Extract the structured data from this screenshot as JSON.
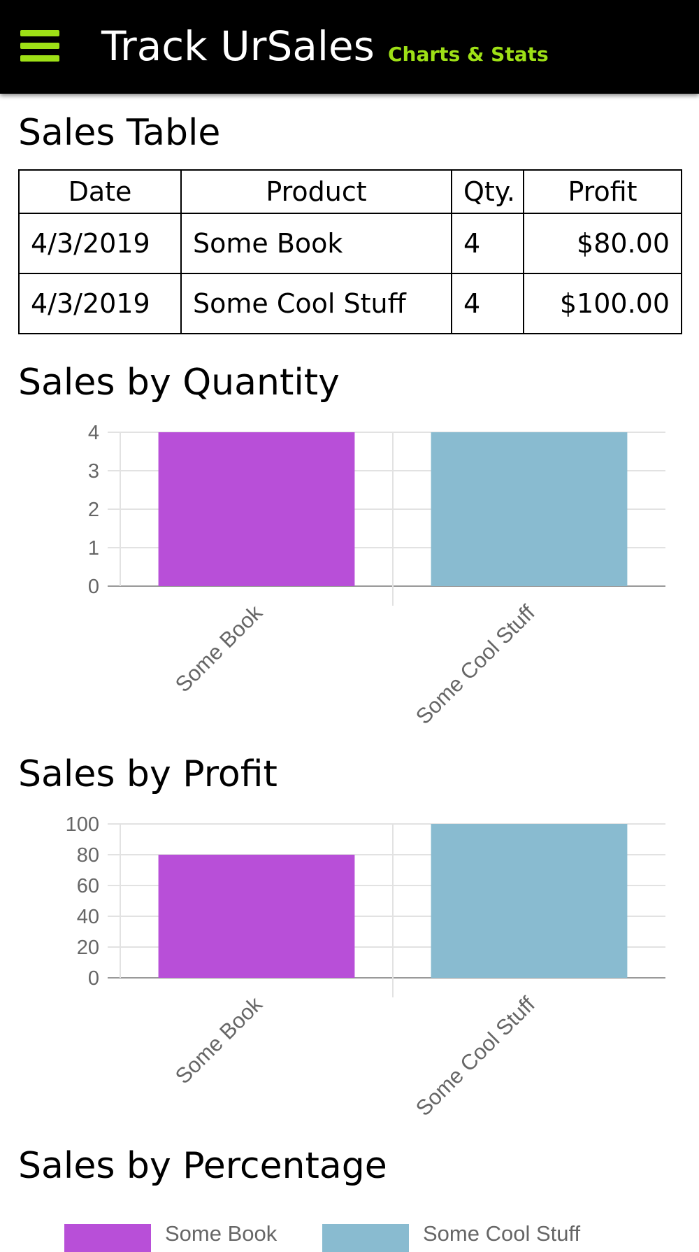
{
  "header": {
    "title": "Track UrSales",
    "subtitle": "Charts & Stats",
    "menu_icon": "hamburger-icon",
    "accent_color": "#9ee016"
  },
  "sales_table": {
    "title": "Sales Table",
    "columns": [
      "Date",
      "Product",
      "Qty.",
      "Profit"
    ],
    "rows": [
      [
        "4/3/2019",
        "Some Book",
        "4",
        "$80.00"
      ],
      [
        "4/3/2019",
        "Some Cool Stuff",
        "4",
        "$100.00"
      ]
    ]
  },
  "sections": {
    "quantity_title": "Sales by Quantity",
    "profit_title": "Sales by Profit",
    "percentage_title": "Sales by Percentage"
  },
  "chart_data": [
    {
      "type": "bar",
      "categories": [
        "Some Book",
        "Some Cool Stuff"
      ],
      "values": [
        4,
        4
      ],
      "colors": [
        "#b84fd8",
        "#89bbd0"
      ],
      "ylim": [
        0,
        4
      ],
      "yticks": [
        0,
        1,
        2,
        3,
        4
      ],
      "grid": true
    },
    {
      "type": "bar",
      "categories": [
        "Some Book",
        "Some Cool Stuff"
      ],
      "values": [
        80,
        100
      ],
      "colors": [
        "#b84fd8",
        "#89bbd0"
      ],
      "ylim": [
        0,
        100
      ],
      "yticks": [
        0,
        20,
        40,
        60,
        80,
        100
      ],
      "grid": true
    },
    {
      "type": "pie",
      "legend": [
        "Some Book",
        "Some Cool Stuff"
      ],
      "colors": [
        "#b84fd8",
        "#89bbd0"
      ],
      "legend_placement": "top"
    }
  ]
}
